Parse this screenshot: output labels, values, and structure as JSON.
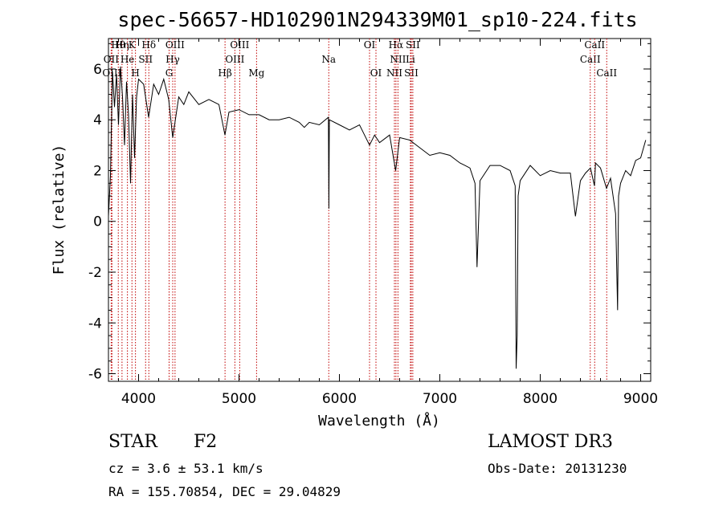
{
  "chart_data": {
    "type": "line",
    "title": "spec-56657-HD102901N294339M01_sp10-224.fits",
    "xlabel": "Wavelength (Å)",
    "ylabel": "Flux (relative)",
    "xlim": [
      3700,
      9100
    ],
    "ylim": [
      -6.3,
      7.2
    ],
    "xticks": [
      4000,
      5000,
      6000,
      7000,
      8000,
      9000
    ],
    "yticks": [
      -6,
      -4,
      -2,
      0,
      2,
      4,
      6
    ],
    "series": [
      {
        "name": "flux",
        "x": [
          3700,
          3720,
          3740,
          3760,
          3780,
          3800,
          3820,
          3840,
          3860,
          3880,
          3900,
          3920,
          3940,
          3960,
          3980,
          4000,
          4050,
          4100,
          4150,
          4200,
          4250,
          4300,
          4340,
          4400,
          4450,
          4500,
          4600,
          4700,
          4800,
          4860,
          4900,
          5000,
          5100,
          5200,
          5300,
          5400,
          5500,
          5600,
          5650,
          5700,
          5800,
          5890,
          5895,
          5900,
          6000,
          6100,
          6200,
          6300,
          6350,
          6400,
          6500,
          6560,
          6600,
          6700,
          6800,
          6900,
          7000,
          7100,
          7200,
          7250,
          7300,
          7350,
          7370,
          7400,
          7500,
          7600,
          7700,
          7750,
          7760,
          7770,
          7780,
          7800,
          7900,
          8000,
          8100,
          8200,
          8300,
          8350,
          8400,
          8450,
          8500,
          8540,
          8550,
          8600,
          8660,
          8700,
          8750,
          8770,
          8780,
          8800,
          8850,
          8900,
          8950,
          9000,
          9050
        ],
        "y": [
          0.2,
          1.8,
          5.9,
          4.5,
          5.8,
          3.8,
          6.1,
          4.9,
          3.0,
          5.5,
          4.2,
          1.5,
          5.0,
          2.5,
          4.9,
          5.6,
          5.4,
          4.1,
          5.4,
          5.0,
          5.6,
          4.8,
          3.3,
          4.9,
          4.6,
          5.1,
          4.6,
          4.8,
          4.6,
          3.4,
          4.3,
          4.4,
          4.2,
          4.2,
          4.0,
          4.0,
          4.1,
          3.9,
          3.7,
          3.9,
          3.8,
          4.1,
          0.5,
          4.0,
          3.8,
          3.6,
          3.8,
          3.0,
          3.4,
          3.1,
          3.4,
          2.0,
          3.3,
          3.2,
          2.9,
          2.6,
          2.7,
          2.6,
          2.3,
          2.2,
          2.1,
          1.5,
          -1.8,
          1.6,
          2.2,
          2.2,
          2.0,
          1.4,
          -5.8,
          -4.5,
          1.0,
          1.6,
          2.2,
          1.8,
          2.0,
          1.9,
          1.9,
          0.2,
          1.6,
          1.9,
          2.1,
          1.4,
          2.3,
          2.1,
          1.3,
          1.7,
          0.3,
          -3.5,
          1.0,
          1.5,
          2.0,
          1.8,
          2.4,
          2.5,
          3.2
        ]
      }
    ],
    "spectral_lines": [
      {
        "label": "Hθ",
        "wavelength": 3798,
        "row": 0
      },
      {
        "label": "OII",
        "wavelength": 3727,
        "row": 1
      },
      {
        "label": "OIII",
        "wavelength": 3735,
        "row": 2
      },
      {
        "label": "Hη",
        "wavelength": 3835,
        "row": 0
      },
      {
        "label": "He",
        "wavelength": 3889,
        "row": 1
      },
      {
        "label": "K",
        "wavelength": 3934,
        "row": 0
      },
      {
        "label": "H",
        "wavelength": 3969,
        "row": 2
      },
      {
        "label": "SII",
        "wavelength": 4070,
        "row": 1
      },
      {
        "label": "Hδ",
        "wavelength": 4102,
        "row": 0
      },
      {
        "label": "G",
        "wavelength": 4304,
        "row": 2
      },
      {
        "label": "Hγ",
        "wavelength": 4340,
        "row": 1
      },
      {
        "label": "OIII",
        "wavelength": 4363,
        "row": 0
      },
      {
        "label": "Hβ",
        "wavelength": 4861,
        "row": 2
      },
      {
        "label": "OIII",
        "wavelength": 4959,
        "row": 1
      },
      {
        "label": "OIII",
        "wavelength": 5007,
        "row": 0
      },
      {
        "label": "Mg",
        "wavelength": 5175,
        "row": 2
      },
      {
        "label": "Na",
        "wavelength": 5894,
        "row": 1
      },
      {
        "label": "OI",
        "wavelength": 6300,
        "row": 0
      },
      {
        "label": "OI",
        "wavelength": 6364,
        "row": 2
      },
      {
        "label": "NII",
        "wavelength": 6548,
        "row": 2
      },
      {
        "label": "Hα",
        "wavelength": 6563,
        "row": 0
      },
      {
        "label": "NII",
        "wavelength": 6583,
        "row": 1
      },
      {
        "label": "Li",
        "wavelength": 6707,
        "row": 1
      },
      {
        "label": "SII",
        "wavelength": 6716,
        "row": 2
      },
      {
        "label": "SII",
        "wavelength": 6731,
        "row": 0
      },
      {
        "label": "CaII",
        "wavelength": 8498,
        "row": 1
      },
      {
        "label": "CaII",
        "wavelength": 8542,
        "row": 0
      },
      {
        "label": "CaII",
        "wavelength": 8662,
        "row": 2
      }
    ],
    "line_color": "#c00000",
    "grid": false
  },
  "info": {
    "object_class": "STAR",
    "subclass": "F2",
    "survey": "LAMOST DR3",
    "cz": "cz = 3.6 ± 53.1 km/s",
    "obs_date": "Obs-Date: 20131230",
    "coords": "RA = 155.70854, DEC =  29.04829"
  }
}
